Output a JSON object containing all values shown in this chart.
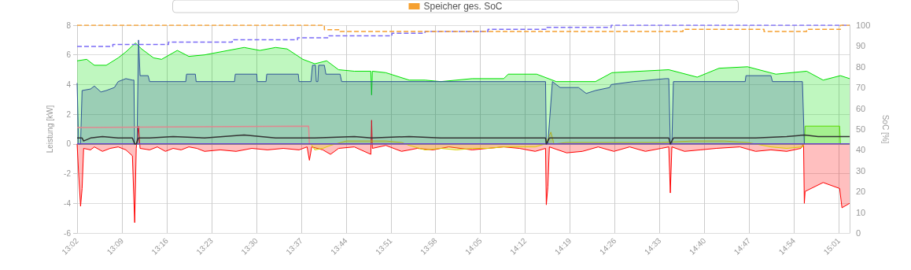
{
  "chart_data": {
    "type": "line",
    "ylabel": "Leistung [kW]",
    "y2label": "SoC [%]",
    "legend": "top",
    "grid": true,
    "marker": "none",
    "xlim": [
      13.033,
      15.045
    ],
    "xticks": [
      {
        "value": 13.033,
        "label": "13:02"
      },
      {
        "value": 13.15,
        "label": "13:09"
      },
      {
        "value": 13.2667,
        "label": "13:16"
      },
      {
        "value": 13.3833,
        "label": "13:23"
      },
      {
        "value": 13.5,
        "label": "13:30"
      },
      {
        "value": 13.6167,
        "label": "13:37"
      },
      {
        "value": 13.7333,
        "label": "13:44"
      },
      {
        "value": 13.85,
        "label": "13:51"
      },
      {
        "value": 13.9667,
        "label": "13:58"
      },
      {
        "value": 14.0833,
        "label": "14:05"
      },
      {
        "value": 14.2,
        "label": "14:12"
      },
      {
        "value": 14.3167,
        "label": "14:19"
      },
      {
        "value": 14.4333,
        "label": "14:26"
      },
      {
        "value": 14.55,
        "label": "14:33"
      },
      {
        "value": 14.6667,
        "label": "14:40"
      },
      {
        "value": 14.7833,
        "label": "14:47"
      },
      {
        "value": 14.9,
        "label": "14:54"
      },
      {
        "value": 15.0167,
        "label": "15:01"
      }
    ],
    "ylim": [
      -6,
      8
    ],
    "yticks": [
      -6,
      -4,
      -2,
      0,
      2,
      4,
      6,
      8
    ],
    "y2lim": [
      0,
      100
    ],
    "y2ticks": [
      0,
      10,
      20,
      30,
      40,
      50,
      60,
      70,
      80,
      90,
      100
    ],
    "series": [
      {
        "type": "area",
        "color": "#00df00",
        "x": [
          13.033,
          13.058,
          13.078,
          13.109,
          13.14,
          13.16,
          13.185,
          13.201,
          13.232,
          13.253,
          13.294,
          13.324,
          13.365,
          13.406,
          13.468,
          13.509,
          13.55,
          13.58,
          13.621,
          13.652,
          13.683,
          13.714,
          13.755,
          13.798,
          13.8,
          13.802,
          13.837,
          13.898,
          13.939,
          13.98,
          14.062,
          14.144,
          14.156,
          14.23,
          14.281,
          14.383,
          14.426,
          14.574,
          14.648,
          14.705,
          14.779,
          14.853,
          14.933,
          14.976,
          15.021,
          15.045
        ],
        "values": [
          5.6,
          5.7,
          5.3,
          5.3,
          5.8,
          6.2,
          6.8,
          6.4,
          5.8,
          5.7,
          6.3,
          5.9,
          6.0,
          6.2,
          6.5,
          6.3,
          6.5,
          6.4,
          5.7,
          5.4,
          5.6,
          5.0,
          4.9,
          4.9,
          3.3,
          4.9,
          4.8,
          4.3,
          4.3,
          4.2,
          4.4,
          4.4,
          4.7,
          4.7,
          4.2,
          4.2,
          4.8,
          5.0,
          4.5,
          5.1,
          5.2,
          4.7,
          4.9,
          4.3,
          4.6,
          4.4
        ]
      },
      {
        "type": "area",
        "color": "#ff0000",
        "x": [
          13.033,
          13.037,
          13.042,
          13.046,
          13.05,
          13.068,
          13.078,
          13.099,
          13.119,
          13.14,
          13.16,
          13.177,
          13.183,
          13.187,
          13.193,
          13.197,
          13.222,
          13.242,
          13.263,
          13.283,
          13.304,
          13.324,
          13.345,
          13.365,
          13.406,
          13.447,
          13.488,
          13.529,
          13.57,
          13.611,
          13.632,
          13.638,
          13.644,
          13.673,
          13.693,
          13.714,
          13.755,
          13.798,
          13.8,
          13.802,
          13.837,
          13.878,
          13.919,
          13.96,
          14.001,
          14.062,
          14.103,
          14.144,
          14.185,
          14.226,
          14.253,
          14.255,
          14.259,
          14.263,
          14.308,
          14.349,
          14.39,
          14.431,
          14.472,
          14.513,
          14.554,
          14.574,
          14.578,
          14.582,
          14.615,
          14.656,
          14.697,
          14.759,
          14.8,
          14.84,
          14.881,
          14.918,
          14.925,
          14.927,
          14.929,
          14.976,
          15.019,
          15.025,
          15.045
        ],
        "values": [
          0,
          -2,
          -4.2,
          -3.0,
          -0.3,
          -0.4,
          -0.2,
          -0.5,
          -0.3,
          -0.2,
          -0.4,
          -0.8,
          -5.3,
          -0.3,
          1.2,
          -0.3,
          -0.4,
          -0.2,
          -0.5,
          -0.3,
          -0.4,
          -0.2,
          -0.3,
          -0.5,
          -0.4,
          -0.5,
          -0.3,
          -0.4,
          -0.3,
          -0.4,
          -0.2,
          -1.1,
          -0.2,
          -0.4,
          -0.7,
          -0.3,
          -0.2,
          -0.7,
          1.6,
          -0.3,
          -0.1,
          -0.5,
          -0.3,
          -0.4,
          -0.2,
          -0.4,
          -0.3,
          -0.2,
          -0.3,
          -0.5,
          -0.3,
          -4.1,
          -2.9,
          -0.2,
          -0.6,
          -0.5,
          -0.2,
          -0.5,
          -0.2,
          -0.5,
          -0.3,
          -0.2,
          -3.3,
          -0.2,
          -0.5,
          -0.4,
          -0.3,
          -0.2,
          -0.5,
          -0.4,
          -0.5,
          -0.3,
          0,
          -4.0,
          -3.2,
          -2.6,
          -3.0,
          -4.3,
          -4.0
        ]
      },
      {
        "type": "area",
        "color": "#d8d000",
        "x": [
          13.033,
          13.642,
          13.652,
          13.673,
          13.693,
          13.734,
          13.796,
          13.837,
          13.878,
          13.898,
          13.939,
          13.98,
          14.021,
          14.062,
          14.103,
          14.144,
          14.226,
          14.253,
          14.267,
          14.275,
          14.308,
          14.39,
          14.472,
          14.554,
          14.636,
          14.718,
          14.779,
          14.84,
          14.881,
          14.923,
          14.927,
          15.045
        ],
        "values": [
          0,
          0,
          -0.4,
          -0.3,
          -0.1,
          0.2,
          0.2,
          0.2,
          0.1,
          -0.1,
          -0.4,
          -0.3,
          -0.4,
          -0.3,
          -0.3,
          -0.2,
          -0.2,
          0,
          0.8,
          0,
          0.1,
          0.1,
          0.1,
          0.1,
          0.2,
          0.2,
          0.1,
          -0.2,
          -0.3,
          -0.2,
          0,
          0
        ]
      },
      {
        "type": "area",
        "color": "#58dc00",
        "x": [
          13.033,
          14.927,
          14.929,
          15.019,
          15.021,
          15.045
        ],
        "values": [
          0,
          0,
          1.2,
          1.2,
          0,
          0
        ]
      },
      {
        "color": "#e08890",
        "x": [
          13.033,
          13.636,
          13.638
        ],
        "values": [
          1.1,
          1.2,
          0
        ]
      },
      {
        "color": "#6a3fd0",
        "x": [
          13.033,
          15.045
        ],
        "values": [
          0,
          0
        ]
      },
      {
        "type": "area",
        "color": "#2f5597",
        "x": [
          13.033,
          13.037,
          13.042,
          13.046,
          13.068,
          13.078,
          13.095,
          13.109,
          13.13,
          13.14,
          13.16,
          13.177,
          13.181,
          13.183,
          13.189,
          13.193,
          13.197,
          13.218,
          13.222,
          13.316,
          13.318,
          13.341,
          13.343,
          13.443,
          13.445,
          13.501,
          13.502,
          13.525,
          13.527,
          13.609,
          13.611,
          13.642,
          13.646,
          13.654,
          13.656,
          13.66,
          13.662,
          13.677,
          13.681,
          13.718,
          13.722,
          14.253,
          14.255,
          14.259,
          14.271,
          14.291,
          14.339,
          14.359,
          14.383,
          14.42,
          14.424,
          14.482,
          14.566,
          14.574,
          14.578,
          14.582,
          14.586,
          14.773,
          14.775,
          14.84,
          14.844,
          14.922,
          14.927
        ],
        "values": [
          4.1,
          0,
          0,
          3.6,
          3.7,
          3.9,
          3.5,
          3.6,
          3.8,
          4.2,
          4.4,
          4.3,
          4.3,
          0,
          0,
          7.0,
          4.6,
          4.6,
          4.2,
          4.2,
          4.7,
          4.7,
          4.2,
          4.2,
          4.7,
          4.7,
          4.2,
          4.2,
          4.7,
          4.7,
          4.2,
          4.2,
          5.3,
          5.3,
          4.2,
          4.2,
          5.3,
          5.3,
          4.7,
          4.7,
          4.2,
          4.2,
          0,
          0,
          4.2,
          3.8,
          3.8,
          3.4,
          3.6,
          3.8,
          4.0,
          4.2,
          4.4,
          4.4,
          0,
          0,
          4.2,
          4.2,
          4.6,
          4.6,
          4.2,
          4.2,
          0
        ]
      },
      {
        "color": "#333333",
        "x": [
          13.033,
          13.046,
          13.05,
          13.068,
          13.099,
          13.14,
          13.177,
          13.183,
          13.187,
          13.193,
          13.222,
          13.283,
          13.365,
          13.468,
          13.55,
          13.652,
          13.755,
          13.8,
          13.898,
          13.98,
          14.062,
          14.185,
          14.253,
          14.255,
          14.263,
          14.39,
          14.472,
          14.574,
          14.578,
          14.586,
          14.677,
          14.8,
          14.881,
          14.927,
          14.963,
          15.045
        ],
        "values": [
          0.4,
          0.4,
          0.2,
          0.4,
          0.5,
          0.4,
          0.4,
          0,
          0,
          0.4,
          0.4,
          0.5,
          0.4,
          0.6,
          0.4,
          0.4,
          0.5,
          0.4,
          0.5,
          0.4,
          0.4,
          0.4,
          0.4,
          0,
          0.4,
          0.4,
          0.4,
          0.4,
          0,
          0.4,
          0.4,
          0.4,
          0.5,
          0.6,
          0.5,
          0.5
        ]
      },
      {
        "type": "step",
        "color": "#7b6cf6",
        "axis": "y2",
        "line_style": "dashed",
        "x": [
          13.033,
          13.126,
          13.271,
          13.437,
          13.607,
          13.689,
          13.853,
          13.939,
          14.103,
          14.255,
          14.424,
          15.045
        ],
        "values": [
          89.8,
          90.7,
          91.9,
          93.0,
          93.9,
          94.9,
          96.1,
          97.0,
          98.0,
          99.0,
          100,
          100
        ]
      },
      {
        "type": "step",
        "name": "Speicher ges. SoC",
        "color": "#f5a030",
        "axis": "y2",
        "line_style": "dashed",
        "x": [
          13.033,
          13.677,
          13.718,
          14.611,
          14.822,
          14.933,
          15.021,
          15.045
        ],
        "values": [
          100,
          97.8,
          97.0,
          98.0,
          97.0,
          98.0,
          100,
          100
        ]
      }
    ]
  }
}
